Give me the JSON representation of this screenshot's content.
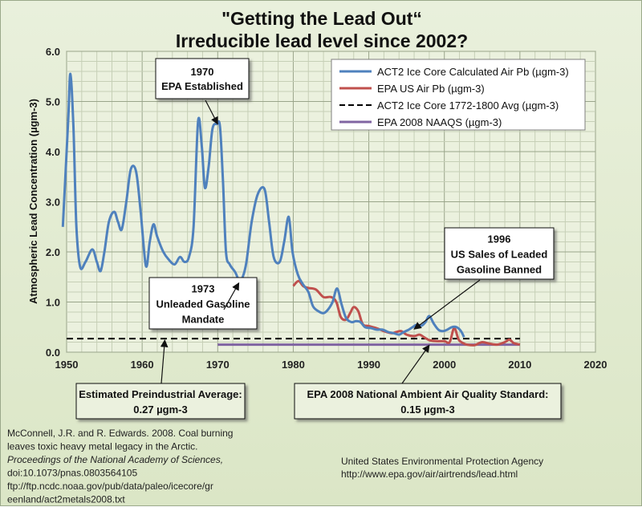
{
  "title_line1": "\"Getting the Lead Out“",
  "title_line2": "Irreducible lead level since 2002?",
  "chart_data": {
    "type": "line",
    "xlabel": "",
    "ylabel": "Atmospheric Lead Concentration (µgm-3)",
    "xlim": [
      1950,
      2020
    ],
    "ylim": [
      0,
      6.0
    ],
    "x_ticks": [
      1950,
      1960,
      1970,
      1980,
      1990,
      2000,
      2010,
      2020
    ],
    "y_ticks": [
      0.0,
      1.0,
      2.0,
      3.0,
      4.0,
      5.0,
      6.0
    ],
    "y_tick_labels": [
      "0.0",
      "1.0",
      "2.0",
      "3.0",
      "4.0",
      "5.0",
      "6.0"
    ],
    "grid": true,
    "legend_position": "top-right",
    "series": [
      {
        "name": "ACT2 Ice Core Calculated Air Pb (µgm-3)",
        "color": "#4f81bd",
        "style": "solid",
        "points": [
          [
            1949.5,
            2.5
          ],
          [
            1950.2,
            4.6
          ],
          [
            1950.5,
            5.55
          ],
          [
            1950.9,
            4.5
          ],
          [
            1951.3,
            2.5
          ],
          [
            1951.8,
            1.7
          ],
          [
            1952.5,
            1.8
          ],
          [
            1953.4,
            2.05
          ],
          [
            1954.0,
            1.8
          ],
          [
            1954.5,
            1.62
          ],
          [
            1955.0,
            2.0
          ],
          [
            1955.6,
            2.6
          ],
          [
            1956.3,
            2.8
          ],
          [
            1956.8,
            2.6
          ],
          [
            1957.3,
            2.45
          ],
          [
            1957.9,
            3.0
          ],
          [
            1958.5,
            3.65
          ],
          [
            1959.2,
            3.6
          ],
          [
            1959.8,
            2.8
          ],
          [
            1960.5,
            1.72
          ],
          [
            1961.0,
            2.2
          ],
          [
            1961.5,
            2.55
          ],
          [
            1962.0,
            2.3
          ],
          [
            1962.8,
            2.0
          ],
          [
            1963.5,
            1.85
          ],
          [
            1964.3,
            1.75
          ],
          [
            1965.0,
            1.9
          ],
          [
            1965.6,
            1.8
          ],
          [
            1966.2,
            1.9
          ],
          [
            1966.8,
            2.5
          ],
          [
            1967.4,
            4.6
          ],
          [
            1967.9,
            4.1
          ],
          [
            1968.3,
            3.28
          ],
          [
            1968.8,
            3.7
          ],
          [
            1969.3,
            4.45
          ],
          [
            1969.9,
            4.55
          ],
          [
            1970.3,
            4.5
          ],
          [
            1970.7,
            3.4
          ],
          [
            1971.1,
            2.0
          ],
          [
            1971.6,
            1.75
          ],
          [
            1972.3,
            1.6
          ],
          [
            1972.8,
            1.45
          ],
          [
            1973.3,
            1.5
          ],
          [
            1973.8,
            1.8
          ],
          [
            1974.5,
            2.6
          ],
          [
            1975.3,
            3.15
          ],
          [
            1976.2,
            3.25
          ],
          [
            1976.8,
            2.6
          ],
          [
            1977.4,
            1.9
          ],
          [
            1978.2,
            1.8
          ],
          [
            1978.8,
            2.2
          ],
          [
            1979.4,
            2.7
          ],
          [
            1979.9,
            2.0
          ],
          [
            1980.6,
            1.55
          ],
          [
            1981.3,
            1.35
          ],
          [
            1982.0,
            1.2
          ],
          [
            1982.6,
            0.92
          ],
          [
            1983.3,
            0.82
          ],
          [
            1984.0,
            0.78
          ],
          [
            1984.6,
            0.85
          ],
          [
            1985.2,
            1.0
          ],
          [
            1985.8,
            1.27
          ],
          [
            1986.4,
            0.95
          ],
          [
            1987.0,
            0.68
          ],
          [
            1987.7,
            0.6
          ],
          [
            1988.3,
            0.62
          ],
          [
            1988.9,
            0.6
          ],
          [
            1989.5,
            0.5
          ],
          [
            1990.3,
            0.48
          ],
          [
            1991.0,
            0.45
          ],
          [
            1991.8,
            0.45
          ],
          [
            1992.6,
            0.4
          ],
          [
            1993.3,
            0.38
          ],
          [
            1994.0,
            0.35
          ],
          [
            1994.6,
            0.4
          ],
          [
            1995.3,
            0.45
          ],
          [
            1995.8,
            0.5
          ],
          [
            1996.4,
            0.55
          ],
          [
            1997.0,
            0.53
          ],
          [
            1997.5,
            0.6
          ],
          [
            1998.0,
            0.72
          ],
          [
            1998.6,
            0.57
          ],
          [
            1999.2,
            0.45
          ],
          [
            1999.8,
            0.42
          ],
          [
            2000.4,
            0.45
          ],
          [
            2001.0,
            0.5
          ],
          [
            2001.6,
            0.5
          ],
          [
            2002.2,
            0.42
          ],
          [
            2002.6,
            0.3
          ]
        ]
      },
      {
        "name": "EPA US Air Pb (µgm-3)",
        "color": "#c0504d",
        "style": "solid",
        "points": [
          [
            1980,
            1.32
          ],
          [
            1980.7,
            1.42
          ],
          [
            1981.3,
            1.32
          ],
          [
            1982,
            1.28
          ],
          [
            1983,
            1.25
          ],
          [
            1984,
            1.1
          ],
          [
            1985,
            1.1
          ],
          [
            1985.7,
            1.0
          ],
          [
            1986.3,
            0.7
          ],
          [
            1987,
            0.65
          ],
          [
            1987.6,
            0.8
          ],
          [
            1988,
            0.9
          ],
          [
            1988.6,
            0.82
          ],
          [
            1989.2,
            0.56
          ],
          [
            1990,
            0.52
          ],
          [
            1991,
            0.48
          ],
          [
            1992,
            0.42
          ],
          [
            1993,
            0.38
          ],
          [
            1993.6,
            0.4
          ],
          [
            1994.3,
            0.42
          ],
          [
            1995,
            0.35
          ],
          [
            1996,
            0.32
          ],
          [
            1996.7,
            0.35
          ],
          [
            1997.3,
            0.3
          ],
          [
            1998,
            0.24
          ],
          [
            1999,
            0.22
          ],
          [
            2000,
            0.22
          ],
          [
            2000.7,
            0.2
          ],
          [
            2001.3,
            0.48
          ],
          [
            2001.9,
            0.25
          ],
          [
            2002.5,
            0.18
          ],
          [
            2003,
            0.15
          ],
          [
            2004,
            0.14
          ],
          [
            2005,
            0.2
          ],
          [
            2006,
            0.17
          ],
          [
            2007,
            0.15
          ],
          [
            2008,
            0.2
          ],
          [
            2008.6,
            0.25
          ],
          [
            2009.2,
            0.18
          ],
          [
            2010,
            0.15
          ]
        ]
      },
      {
        "name": "ACT2 Ice Core 1772-1800 Avg (µgm-3)",
        "color": "#000000",
        "style": "dashed",
        "points": [
          [
            1950,
            0.27
          ],
          [
            2010,
            0.27
          ]
        ]
      },
      {
        "name": "EPA 2008 NAAQS (µgm-3)",
        "color": "#8064a2",
        "style": "solid",
        "points": [
          [
            1970,
            0.15
          ],
          [
            2010,
            0.15
          ]
        ]
      }
    ],
    "annotations": [
      {
        "id": "1970",
        "lines": [
          "1970",
          "EPA Established"
        ],
        "arrow_to": [
          1970,
          4.55
        ]
      },
      {
        "id": "1973",
        "lines": [
          "1973",
          "Unleaded Gasoline",
          "Mandate"
        ],
        "arrow_to": [
          1972.8,
          1.38
        ]
      },
      {
        "id": "1996",
        "lines": [
          "1996",
          "US Sales of Leaded",
          "Gasoline Banned"
        ],
        "arrow_to": [
          1996,
          0.46
        ]
      },
      {
        "id": "preind",
        "lines": [
          "Estimated Preindustrial Average:",
          "0.27 µgm-3"
        ],
        "arrow_to": [
          1963,
          0.24
        ]
      },
      {
        "id": "naaqs",
        "lines": [
          "EPA 2008 National Ambient Air Quality Standard:",
          "0.15 µgm-3"
        ],
        "arrow_to": [
          1998,
          0.14
        ]
      }
    ]
  },
  "source_left": [
    {
      "text": "McConnell, J.R. and R. Edwards. 2008.  Coal burning",
      "italic": false
    },
    {
      "text": "leaves toxic heavy metal legacy in the Arctic.",
      "italic": false
    },
    {
      "text": "Proceedings of the National Academy of Sciences,",
      "italic": true
    },
    {
      "text": "doi:10.1073/pnas.0803564105",
      "italic": false
    },
    {
      "text": "ftp://ftp.ncdc.noaa.gov/pub/data/paleo/icecore/gr",
      "italic": false
    },
    {
      "text": "eenland/act2metals2008.txt",
      "italic": false
    }
  ],
  "source_right": [
    "United States Environmental Protection Agency",
    "http://www.epa.gov/air/airtrends/lead.html"
  ]
}
